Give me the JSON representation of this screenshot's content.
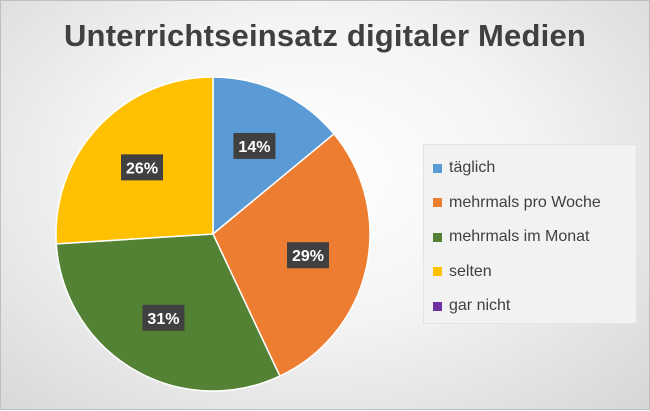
{
  "chart_data": {
    "type": "pie",
    "title": "Unterrichtseinsatz digitaler Medien",
    "categories": [
      "täglich",
      "mehrmals pro Woche",
      "mehrmals im Monat",
      "selten",
      "gar nicht"
    ],
    "values": [
      14,
      29,
      31,
      26,
      0
    ],
    "data_labels": [
      "14%",
      "29%",
      "31%",
      "26%",
      ""
    ],
    "colors": [
      "#5b9bd5",
      "#ed7d31",
      "#548235",
      "#ffc000",
      "#7030a0"
    ],
    "legend_position": "right",
    "start_angle": "top, clockwise"
  }
}
